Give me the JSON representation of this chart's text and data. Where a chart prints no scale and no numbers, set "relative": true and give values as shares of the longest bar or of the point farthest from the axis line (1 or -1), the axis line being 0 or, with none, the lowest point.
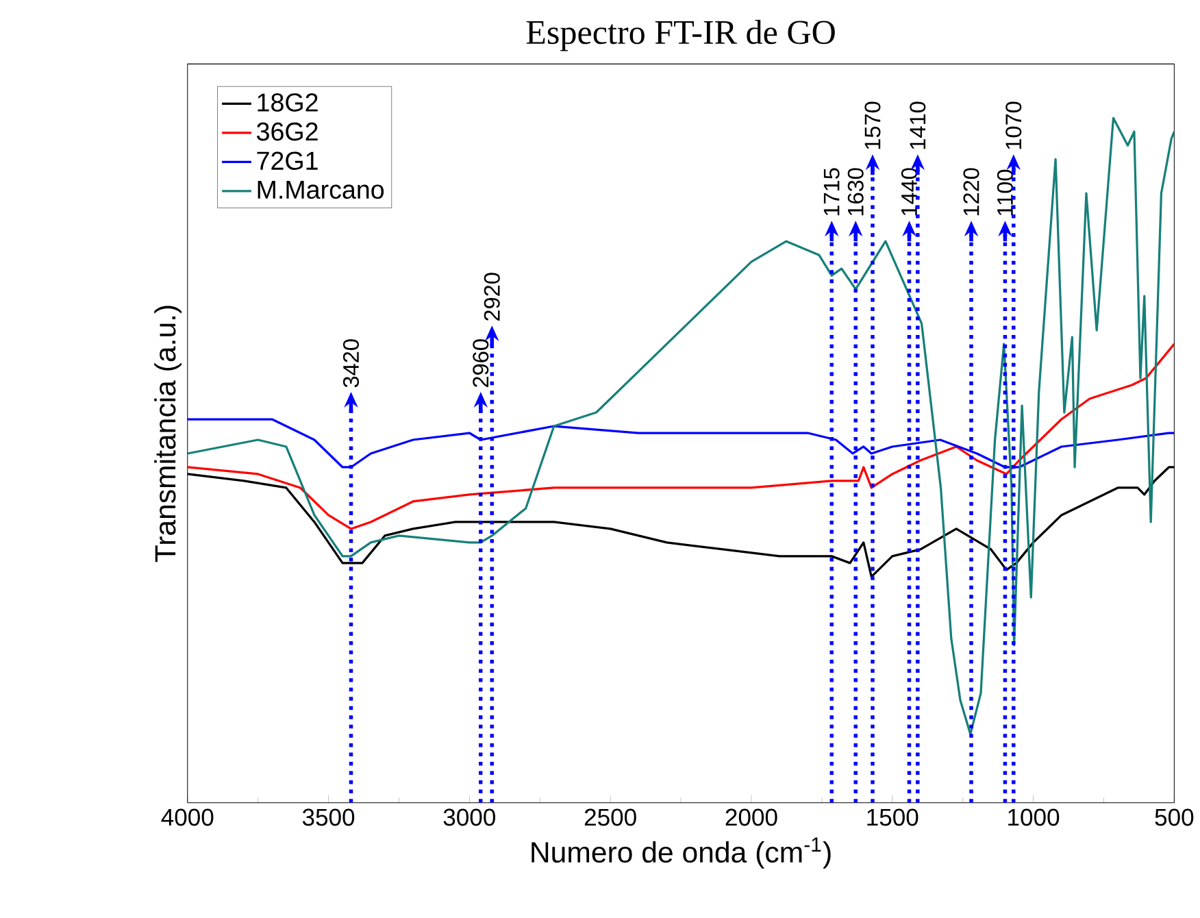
{
  "chart_data": {
    "type": "line",
    "title": "Espectro FT-IR de GO",
    "xlabel": "Numero de onda (cm$^{-1}$)",
    "ylabel": "Transmitancia (a.u.)",
    "relative": true,
    "xlim": [
      4000,
      500
    ],
    "xticks": [
      4000,
      3500,
      3000,
      2500,
      2000,
      1500,
      1000,
      500
    ],
    "legend": "top left",
    "grid": false,
    "marker": "none",
    "line_style": "solid",
    "series": [
      {
        "name": "18G2",
        "color": "#000000",
        "x": [
          4000,
          3800,
          3650,
          3550,
          3450,
          3420,
          3380,
          3300,
          3200,
          3050,
          2900,
          2700,
          2500,
          2300,
          2100,
          1900,
          1715,
          1650,
          1602,
          1574,
          1500,
          1400,
          1273,
          1150,
          1095,
          1060,
          1000,
          900,
          800,
          700,
          630,
          606,
          570,
          519,
          500
        ],
        "values": [
          0.48,
          0.47,
          0.46,
          0.41,
          0.35,
          0.35,
          0.35,
          0.39,
          0.4,
          0.41,
          0.41,
          0.41,
          0.4,
          0.38,
          0.37,
          0.36,
          0.36,
          0.35,
          0.38,
          0.33,
          0.36,
          0.37,
          0.4,
          0.37,
          0.34,
          0.35,
          0.38,
          0.42,
          0.44,
          0.46,
          0.46,
          0.45,
          0.47,
          0.49,
          0.49
        ]
      },
      {
        "name": "36G2",
        "color": "#ff0000",
        "x": [
          4000,
          3750,
          3600,
          3500,
          3420,
          3350,
          3200,
          3000,
          2700,
          2400,
          2000,
          1715,
          1620,
          1602,
          1574,
          1500,
          1400,
          1273,
          1200,
          1095,
          1050,
          1000,
          900,
          800,
          650,
          600,
          520,
          500
        ],
        "values": [
          0.49,
          0.48,
          0.46,
          0.42,
          0.4,
          0.41,
          0.44,
          0.45,
          0.46,
          0.46,
          0.46,
          0.47,
          0.47,
          0.49,
          0.46,
          0.48,
          0.5,
          0.52,
          0.5,
          0.48,
          0.5,
          0.52,
          0.56,
          0.59,
          0.61,
          0.62,
          0.66,
          0.67
        ]
      },
      {
        "name": "72G1",
        "color": "#0000ff",
        "x": [
          4000,
          3700,
          3550,
          3450,
          3420,
          3350,
          3200,
          3000,
          2960,
          2700,
          2400,
          2200,
          1800,
          1700,
          1640,
          1602,
          1574,
          1500,
          1330,
          1200,
          1100,
          1050,
          900,
          700,
          520,
          500
        ],
        "values": [
          0.56,
          0.56,
          0.53,
          0.49,
          0.49,
          0.51,
          0.53,
          0.54,
          0.53,
          0.55,
          0.54,
          0.54,
          0.54,
          0.53,
          0.51,
          0.52,
          0.51,
          0.52,
          0.53,
          0.51,
          0.49,
          0.49,
          0.52,
          0.53,
          0.54,
          0.54
        ]
      },
      {
        "name": "M.Marcano",
        "color": "#17807a",
        "x": [
          4000,
          3750,
          3650,
          3550,
          3450,
          3420,
          3350,
          3250,
          3000,
          2960,
          2920,
          2800,
          2700,
          2550,
          2400,
          2200,
          2000,
          1876,
          1760,
          1715,
          1680,
          1630,
          1524,
          1460,
          1396,
          1328,
          1291,
          1259,
          1223,
          1186,
          1136,
          1104,
          1077,
          1068,
          1040,
          1008,
          980,
          921,
          890,
          862,
          853,
          812,
          775,
          716,
          665,
          642,
          620,
          606,
          583,
          546,
          510,
          500
        ],
        "values": [
          0.51,
          0.53,
          0.52,
          0.42,
          0.36,
          0.36,
          0.38,
          0.39,
          0.38,
          0.38,
          0.39,
          0.43,
          0.55,
          0.57,
          0.63,
          0.71,
          0.79,
          0.82,
          0.8,
          0.77,
          0.78,
          0.75,
          0.82,
          0.76,
          0.7,
          0.46,
          0.24,
          0.15,
          0.1,
          0.16,
          0.53,
          0.67,
          0.46,
          0.23,
          0.58,
          0.3,
          0.6,
          0.94,
          0.57,
          0.68,
          0.49,
          0.89,
          0.69,
          1.0,
          0.96,
          0.98,
          0.62,
          0.74,
          0.41,
          0.89,
          0.97,
          0.98
        ]
      }
    ],
    "ref_lines": [
      {
        "axis": "x",
        "value": 3420,
        "label": "3420",
        "color": "#0000ff",
        "line_style": "dotted"
      },
      {
        "axis": "x",
        "value": 2960,
        "label": "2960",
        "color": "#0000ff",
        "line_style": "dotted"
      },
      {
        "axis": "x",
        "value": 2920,
        "label": "2920",
        "color": "#0000ff",
        "line_style": "dotted"
      },
      {
        "axis": "x",
        "value": 1715,
        "label": "1715",
        "color": "#0000ff",
        "line_style": "dotted"
      },
      {
        "axis": "x",
        "value": 1630,
        "label": "1630",
        "color": "#0000ff",
        "line_style": "dotted"
      },
      {
        "axis": "x",
        "value": 1570,
        "label": "1570",
        "color": "#0000ff",
        "line_style": "dotted"
      },
      {
        "axis": "x",
        "value": 1440,
        "label": "1440",
        "color": "#0000ff",
        "line_style": "dotted"
      },
      {
        "axis": "x",
        "value": 1410,
        "label": "1410",
        "color": "#0000ff",
        "line_style": "dotted"
      },
      {
        "axis": "x",
        "value": 1220,
        "label": "1220",
        "color": "#0000ff",
        "line_style": "dotted"
      },
      {
        "axis": "x",
        "value": 1100,
        "label": "1100",
        "color": "#0000ff",
        "line_style": "dotted"
      },
      {
        "axis": "x",
        "value": 1070,
        "label": "1070",
        "color": "#0000ff",
        "line_style": "dotted"
      }
    ]
  }
}
